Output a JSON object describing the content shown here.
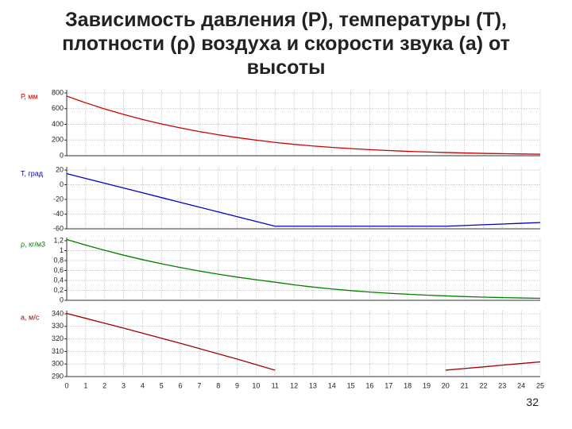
{
  "title_lines": [
    "Зависимость давления (Р), температуры (Т),",
    "плотности (ρ) воздуха и скорости звука (а) от",
    "высоты"
  ],
  "page_number": "32",
  "chart_data": [
    {
      "type": "line",
      "ylabel": "Р, мм",
      "color": "#cc0000",
      "x": [
        0,
        1,
        2,
        3,
        4,
        5,
        6,
        7,
        8,
        9,
        10,
        11,
        12,
        13,
        14,
        15,
        16,
        17,
        18,
        19,
        20,
        21,
        22,
        23,
        24,
        25
      ],
      "values": [
        760,
        674,
        596,
        526,
        462,
        405,
        354,
        308,
        267,
        231,
        199,
        170,
        145,
        124,
        106,
        91,
        77,
        66,
        56,
        48,
        41,
        35,
        30,
        26,
        22,
        19
      ],
      "xlim": [
        0,
        25
      ],
      "xticks": [
        0,
        1,
        2,
        3,
        4,
        5,
        6,
        7,
        8,
        9,
        10,
        11,
        12,
        13,
        14,
        15,
        16,
        17,
        18,
        19,
        20,
        21,
        22,
        23,
        24,
        25
      ],
      "ylim": [
        0,
        800
      ],
      "yticks": [
        800,
        600,
        400,
        200,
        0
      ]
    },
    {
      "type": "line",
      "ylabel": "Т, град",
      "color": "#0000c8",
      "x": [
        0,
        1,
        2,
        3,
        4,
        5,
        6,
        7,
        8,
        9,
        10,
        11,
        12,
        13,
        14,
        15,
        16,
        17,
        18,
        19,
        20,
        21,
        22,
        23,
        24,
        25
      ],
      "values": [
        15,
        8.5,
        2,
        -4.5,
        -11,
        -17.5,
        -24,
        -30.5,
        -37,
        -43.5,
        -50,
        -56.5,
        -56.5,
        -56.5,
        -56.5,
        -56.5,
        -56.5,
        -56.5,
        -56.5,
        -56.5,
        -56.5,
        -55.5,
        -54.5,
        -53.5,
        -52.5,
        -51.5
      ],
      "xlim": [
        0,
        25
      ],
      "xticks": [
        0,
        1,
        2,
        3,
        4,
        5,
        6,
        7,
        8,
        9,
        10,
        11,
        12,
        13,
        14,
        15,
        16,
        17,
        18,
        19,
        20,
        21,
        22,
        23,
        24,
        25
      ],
      "ylim": [
        -60,
        20
      ],
      "yticks": [
        20,
        0,
        -20,
        -40,
        -60
      ]
    },
    {
      "type": "line",
      "ylabel": "ρ, кг/м3",
      "color": "#008000",
      "x": [
        0,
        1,
        2,
        3,
        4,
        5,
        6,
        7,
        8,
        9,
        10,
        11,
        12,
        13,
        14,
        15,
        16,
        17,
        18,
        19,
        20,
        21,
        22,
        23,
        24,
        25
      ],
      "values": [
        1.225,
        1.112,
        1.007,
        0.909,
        0.819,
        0.736,
        0.66,
        0.59,
        0.526,
        0.467,
        0.414,
        0.365,
        0.312,
        0.267,
        0.228,
        0.195,
        0.166,
        0.142,
        0.122,
        0.104,
        0.089,
        0.075,
        0.064,
        0.055,
        0.047,
        0.04
      ],
      "xlim": [
        0,
        25
      ],
      "xticks": [
        0,
        1,
        2,
        3,
        4,
        5,
        6,
        7,
        8,
        9,
        10,
        11,
        12,
        13,
        14,
        15,
        16,
        17,
        18,
        19,
        20,
        21,
        22,
        23,
        24,
        25
      ],
      "ylim": [
        0,
        1.2
      ],
      "yticks": [
        {
          "value": 1.2,
          "label": "1,2"
        },
        1,
        {
          "value": 0.8,
          "label": "0,8"
        },
        {
          "value": 0.6,
          "label": "0,6"
        },
        {
          "value": 0.4,
          "label": "0,4"
        },
        {
          "value": 0.2,
          "label": "0,2"
        },
        0
      ]
    },
    {
      "type": "line",
      "ylabel": "а, м/с",
      "color": "#a00000",
      "x": [
        0,
        1,
        2,
        3,
        4,
        5,
        6,
        7,
        8,
        9,
        10,
        11,
        12,
        13,
        14,
        15,
        16,
        17,
        18,
        19,
        20,
        21,
        22,
        23,
        24,
        25
      ],
      "values": [
        340.3,
        336.4,
        332.5,
        328.6,
        324.6,
        320.5,
        316.5,
        312.3,
        308.1,
        303.9,
        299.5,
        295.1,
        null,
        null,
        null,
        null,
        null,
        null,
        null,
        null,
        295.1,
        296.4,
        297.7,
        299.1,
        300.4,
        301.7
      ],
      "xlim": [
        0,
        25
      ],
      "xticks": [
        0,
        1,
        2,
        3,
        4,
        5,
        6,
        7,
        8,
        9,
        10,
        11,
        12,
        13,
        14,
        15,
        16,
        17,
        18,
        19,
        20,
        21,
        22,
        23,
        24,
        25
      ],
      "ylim": [
        290,
        340
      ],
      "yticks": [
        340,
        330,
        320,
        310,
        300,
        290
      ],
      "x_tick_labels": true
    }
  ]
}
